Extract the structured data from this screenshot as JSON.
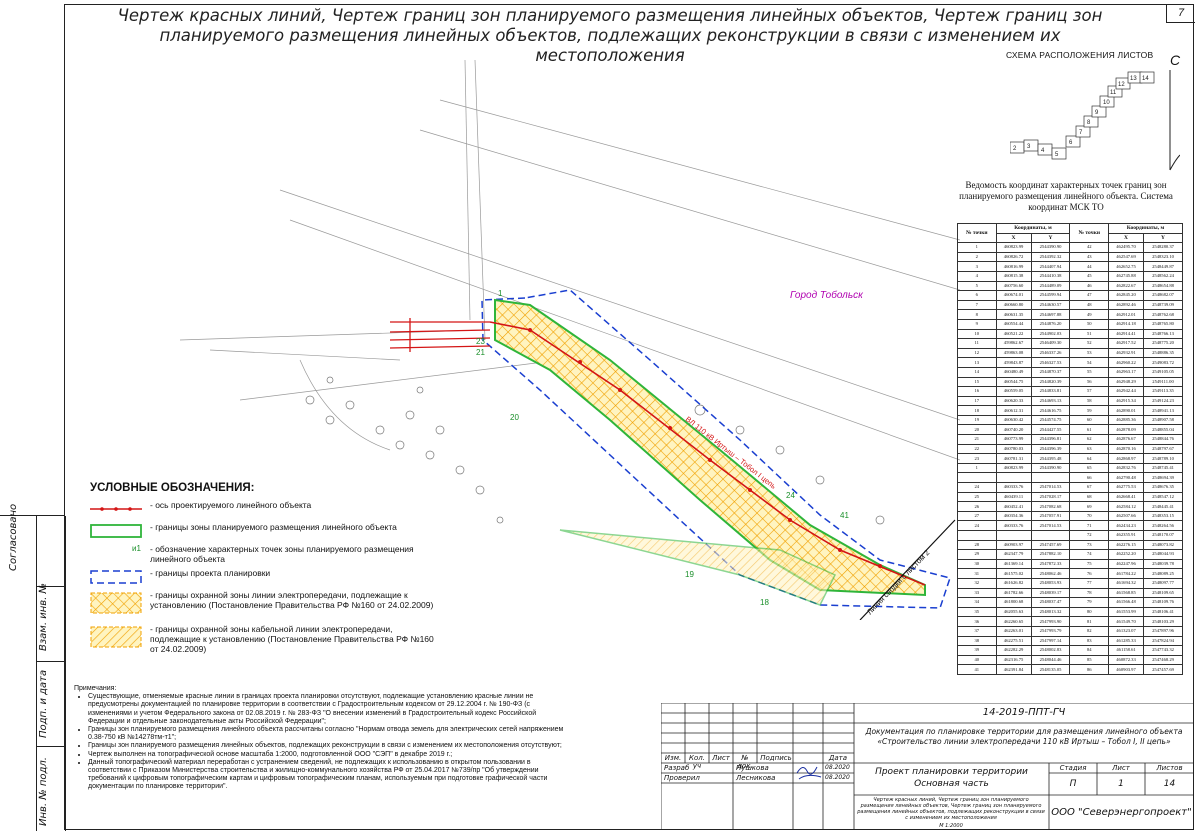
{
  "header": {
    "title": "Чертеж красных линий, Чертеж границ зон планируемого размещения линейных объектов, Чертеж границ зон планируемого размещения линейных объектов, подлежащих реконструкции в связи с изменением их местоположения",
    "page_number": "7"
  },
  "side": {
    "labels": [
      "Согласовано",
      "Взам. инв. №",
      "Подп. и дата",
      "Инв. № подл."
    ]
  },
  "scheme": {
    "title": "СХЕМА РАСПОЛОЖЕНИЯ ЛИСТОВ",
    "compass": "С",
    "sheets": [
      "2",
      "3",
      "4",
      "5",
      "6",
      "7",
      "8",
      "9",
      "10",
      "11",
      "12",
      "13",
      "14"
    ]
  },
  "map": {
    "city": "Город Тобольск",
    "line_label": "Линия сводки с листом 2",
    "axis_label": "ВЛ 110 кВ Иртыш – Тобол I цепь",
    "points": [
      "1",
      "18",
      "19",
      "20",
      "21",
      "23",
      "24",
      "41",
      "42",
      "1"
    ]
  },
  "table": {
    "title": "Ведомость координат характерных точек границ зон планируемого размещения линейного объекта. Система координат МСК ТО",
    "h_no": "№ точки",
    "h_coord": "Координаты, м",
    "h_x": "X",
    "h_y": "Y",
    "left": [
      [
        "1",
        "460823.99",
        "2544390.90"
      ],
      [
        "2",
        "460826.72",
        "2544392.32"
      ],
      [
        "3",
        "460816.99",
        "2544407.94"
      ],
      [
        "4",
        "460815.38",
        "2544410.38"
      ],
      [
        "5",
        "460756.60",
        "2544489.09"
      ],
      [
        "6",
        "460674.01",
        "2544599.94"
      ],
      [
        "7",
        "460660.80",
        "2544630.57"
      ],
      [
        "8",
        "460631.35",
        "2544697.88"
      ],
      [
        "9",
        "460554.44",
        "2544876.20"
      ],
      [
        "10",
        "460521.22",
        "2544902.03"
      ],
      [
        "11",
        "459862.67",
        "2546409.30"
      ],
      [
        "12",
        "459863.08",
        "2546337.26"
      ],
      [
        "13",
        "459843.87",
        "2546327.53"
      ],
      [
        "14",
        "460480.49",
        "2544870.37"
      ],
      [
        "15",
        "460544.75",
        "2544820.39"
      ],
      [
        "16",
        "460559.05",
        "2544833.81"
      ],
      [
        "17",
        "460620.33",
        "2544693.13"
      ],
      [
        "18",
        "460612.31",
        "2544616.75"
      ],
      [
        "19",
        "460630.42",
        "2544574.75"
      ],
      [
        "20",
        "460740.20",
        "2544427.55"
      ],
      [
        "21",
        "460773.99",
        "2544396.81"
      ],
      [
        "22",
        "460780.03",
        "2544396.39"
      ],
      [
        "23",
        "460781.31",
        "2544395.48"
      ],
      [
        "1",
        "460823.99",
        "2544390.90"
      ],
      [
        "",
        "",
        " "
      ],
      [
        "24",
        "460333.76",
        "2547014.53"
      ],
      [
        "25",
        "460439.11",
        "2547028.17"
      ],
      [
        "26",
        "460452.41",
        "2547082.68"
      ],
      [
        "27",
        "460354.36",
        "2547057.91"
      ],
      [
        "24",
        "460333.76",
        "2547014.53"
      ],
      [
        "",
        "",
        " "
      ],
      [
        "28",
        "460903.97",
        "2547457.69"
      ],
      [
        "29",
        "462347.79",
        "2547882.10"
      ],
      [
        "30",
        "461369.14",
        "2547872.33"
      ],
      [
        "31",
        "461575.02",
        "2548062.46"
      ],
      [
        "32",
        "461626.82",
        "2548053.93"
      ],
      [
        "33",
        "461782.66",
        "2548039.17"
      ],
      [
        "34",
        "461800.68",
        "2548037.47"
      ],
      [
        "35",
        "462055.63",
        "2548013.32"
      ],
      [
        "36",
        "462260.65",
        "2547993.90"
      ],
      [
        "37",
        "462263.01",
        "2547993.79"
      ],
      [
        "38",
        "462275.51",
        "2547997.14"
      ],
      [
        "39",
        "462282.29",
        "2548002.83"
      ],
      [
        "40",
        "462316.75",
        "2548044.46"
      ],
      [
        "41",
        "462391.84",
        "2548135.05"
      ]
    ],
    "right": [
      [
        "42",
        "462495.70",
        "2548280.37"
      ],
      [
        "43",
        "462547.69",
        "2548323.10"
      ],
      [
        "44",
        "462652.75",
        "2548449.87"
      ],
      [
        "45",
        "462745.88",
        "2548562.24"
      ],
      [
        "46",
        "462822.67",
        "2548654.88"
      ],
      [
        "47",
        "462845.20",
        "2548682.07"
      ],
      [
        "48",
        "462892.46",
        "2548739.09"
      ],
      [
        "49",
        "462912.01",
        "2548762.68"
      ],
      [
        "50",
        "462914.18",
        "2548765.80"
      ],
      [
        "51",
        "462914.41",
        "2548766.13"
      ],
      [
        "52",
        "462917.52",
        "2548775.20"
      ],
      [
        "53",
        "462932.91",
        "2548886.35"
      ],
      [
        "54",
        "462960.22",
        "2549083.72"
      ],
      [
        "55",
        "462963.17",
        "2549105.05"
      ],
      [
        "56",
        "462948.29",
        "2549111.00"
      ],
      [
        "57",
        "462942.44",
        "2549113.35"
      ],
      [
        "58",
        "462915.34",
        "2549124.23"
      ],
      [
        "59",
        "462890.01",
        "2548941.13"
      ],
      [
        "60",
        "462885.36",
        "2548907.58"
      ],
      [
        "61",
        "462878.09",
        "2548855.04"
      ],
      [
        "62",
        "462876.67",
        "2548844.76"
      ],
      [
        "63",
        "462870.16",
        "2548797.67"
      ],
      [
        "64",
        "462868.97",
        "2548789.10"
      ],
      [
        "65",
        "462832.76",
        "2548745.41"
      ],
      [
        "66",
        "462790.48",
        "2548694.39"
      ],
      [
        "67",
        "462775.53",
        "2548676.35"
      ],
      [
        "68",
        "462668.41",
        "2548547.12"
      ],
      [
        "69",
        "462584.12",
        "2548445.41"
      ],
      [
        "70",
        "462507.66",
        "2548353.15"
      ],
      [
        "71",
        "462434.23",
        "2548264.56"
      ],
      [
        "72",
        "462355.91",
        "2548170.07"
      ],
      [
        "73",
        "462276.15",
        "2548073.82"
      ],
      [
        "74",
        "462252.20",
        "2548044.93"
      ],
      [
        "75",
        "462247.96",
        "2548039.78"
      ],
      [
        "76",
        "461784.22",
        "2548089.25"
      ],
      [
        "77",
        "461694.32",
        "2548097.77"
      ],
      [
        "78",
        "461568.85",
        "2548109.65"
      ],
      [
        "79",
        "461566.48",
        "2548109.76"
      ],
      [
        "80",
        "461553.99",
        "2548106.41"
      ],
      [
        "81",
        "461549.70",
        "2548103.29"
      ],
      [
        "82",
        "461323.07",
        "2547897.96"
      ],
      [
        "83",
        "461285.33",
        "2547824.94"
      ],
      [
        "84",
        "461158.61",
        "2547743.32"
      ],
      [
        "85",
        "460872.33",
        "2547468.29"
      ],
      [
        "86",
        "460903.97",
        "2547457.69"
      ]
    ]
  },
  "legend": {
    "title": "УСЛОВНЫЕ ОБОЗНАЧЕНИЯ:",
    "items": [
      "- ось проектируемого линейного объекта",
      "- границы зоны планируемого размещения линейного объекта",
      "- обозначение характерных точек зоны планируемого размещения линейного объекта",
      "- границы проекта планировки",
      "- границы охранной зоны линии электропередачи, подлежащие к установлению (Постановление Правительства РФ №160 от 24.02.2009)",
      "- границы охранной зоны кабельной линии электропередачи, подлежащие к установлению (Постановление Правительства РФ №160 от 24.02.2009)"
    ],
    "point_sample": "и1"
  },
  "notes": {
    "title": "Примечания:",
    "items": [
      "Существующие, отменяемые красные линии в границах проекта планировки отсутствуют, подлежащие установлению красные линии не предусмотрены документацией по планировке территории в соответствии с Градостроительным кодексом от 29.12.2004 г. № 190-ФЗ (с изменениями и учетом Федерального закона от 02.08.2019 г. № 283-ФЗ \"О внесении изменений в Градостроительный кодекс Российской Федерации и отдельные законодательные акты Российской Федерации\";",
      "Границы зон планируемого размещения линейного объекта рассчитаны согласно \"Нормам отвода земель для электрических сетей напряжением 0.38-750 кВ №14278тм-т1\";",
      "Границы зон планируемого размещения линейных объектов, подлежащих реконструкции в связи с изменением их местоположения отсутствуют;",
      "Чертеж выполнен на топографической основе масштаба 1:2000, подготовленной ООО \"СЭП\" в декабре 2019 г.;",
      "Данный топографический материал переработан с устранением сведений, не подлежащих к использованию в открытом пользовании в соответствии с Приказом Министерства строительства и жилищно-коммунального хозяйства РФ от 25.04.2017 №739/пр \"Об утверждении требований к цифровым топографическим картам и цифровым топографическим планам, используемым при подготовке графической части документации по планировке территории\"."
    ]
  },
  "stamp": {
    "code": "14-2019-ППТ-ГЧ",
    "doc": "Документация по планировке территории для размещения линейного объекта «Строительство линии электропередачи 110 кВ Иртыш – Тобол I, II цепь»",
    "cols": [
      "Изм.",
      "Кол. уч",
      "Лист",
      "№ док.",
      "Подпись",
      "Дата"
    ],
    "r1": [
      "Разраб",
      "Пушкова",
      "08.2020"
    ],
    "r2": [
      "Проверил",
      "Лесникова",
      "08.2020"
    ],
    "project": "Проект планировки территории",
    "part": "Основная часть",
    "h_stage": "Стадия",
    "h_sheet": "Лист",
    "h_sheets": "Листов",
    "stage": "П",
    "sheet": "1",
    "sheets": "14",
    "drawing": "Чертеж красных линий, Чертеж границ зон планируемого размещения линейных объектов, Чертеж границ зон планируемого размещения линейных объектов, подлежащих реконструкции в связи с изменением их местоположения",
    "scale": "М 1:2000",
    "company": "ООО \"Северэнергопроект\""
  }
}
